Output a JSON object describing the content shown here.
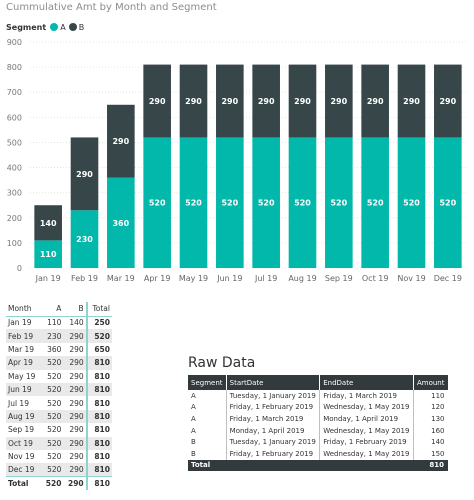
{
  "chart_data": {
    "type": "bar",
    "stacked": true,
    "title": "Cummulative Amt by Month and Segment",
    "legend_title": "Segment",
    "legend_position": "top-left",
    "categories": [
      "Jan 19",
      "Feb 19",
      "Mar 19",
      "Apr 19",
      "May 19",
      "Jun 19",
      "Jul 19",
      "Aug 19",
      "Sep 19",
      "Oct 19",
      "Nov 19",
      "Dec 19"
    ],
    "series": [
      {
        "name": "A",
        "color": "#01b8aa",
        "values": [
          110,
          230,
          360,
          520,
          520,
          520,
          520,
          520,
          520,
          520,
          520,
          520
        ]
      },
      {
        "name": "B",
        "color": "#374649",
        "values": [
          140,
          290,
          290,
          290,
          290,
          290,
          290,
          290,
          290,
          290,
          290,
          290
        ]
      }
    ],
    "yticks": [
      "0",
      "100",
      "200",
      "300",
      "400",
      "500",
      "600",
      "700",
      "800",
      "900"
    ],
    "ylim": [
      0,
      900
    ],
    "grid": true
  },
  "month_table": {
    "headers": [
      "Month",
      "A",
      "B",
      "Total"
    ],
    "rows": [
      [
        "Jan 19",
        "110",
        "140",
        "250"
      ],
      [
        "Feb 19",
        "230",
        "290",
        "520"
      ],
      [
        "Mar 19",
        "360",
        "290",
        "650"
      ],
      [
        "Apr 19",
        "520",
        "290",
        "810"
      ],
      [
        "May 19",
        "520",
        "290",
        "810"
      ],
      [
        "Jun 19",
        "520",
        "290",
        "810"
      ],
      [
        "Jul 19",
        "520",
        "290",
        "810"
      ],
      [
        "Aug 19",
        "520",
        "290",
        "810"
      ],
      [
        "Sep 19",
        "520",
        "290",
        "810"
      ],
      [
        "Oct 19",
        "520",
        "290",
        "810"
      ],
      [
        "Nov 19",
        "520",
        "290",
        "810"
      ],
      [
        "Dec 19",
        "520",
        "290",
        "810"
      ]
    ],
    "total": [
      "Total",
      "520",
      "290",
      "810"
    ]
  },
  "raw_data": {
    "title": "Raw Data",
    "headers": [
      "Segment",
      "StartDate",
      "EndDate",
      "Amount"
    ],
    "rows": [
      [
        "A",
        "Tuesday, 1 January 2019",
        "Friday, 1 March 2019",
        "110"
      ],
      [
        "A",
        "Friday, 1 February 2019",
        "Wednesday, 1 May 2019",
        "120"
      ],
      [
        "A",
        "Friday, 1 March 2019",
        "Monday, 1 April 2019",
        "130"
      ],
      [
        "A",
        "Monday, 1 April 2019",
        "Wednesday, 1 May 2019",
        "160"
      ],
      [
        "B",
        "Tuesday, 1 January 2019",
        "Friday, 1 February 2019",
        "140"
      ],
      [
        "B",
        "Friday, 1 February 2019",
        "Wednesday, 1 May 2019",
        "150"
      ]
    ],
    "total": [
      "Total",
      "",
      "",
      "810"
    ]
  }
}
